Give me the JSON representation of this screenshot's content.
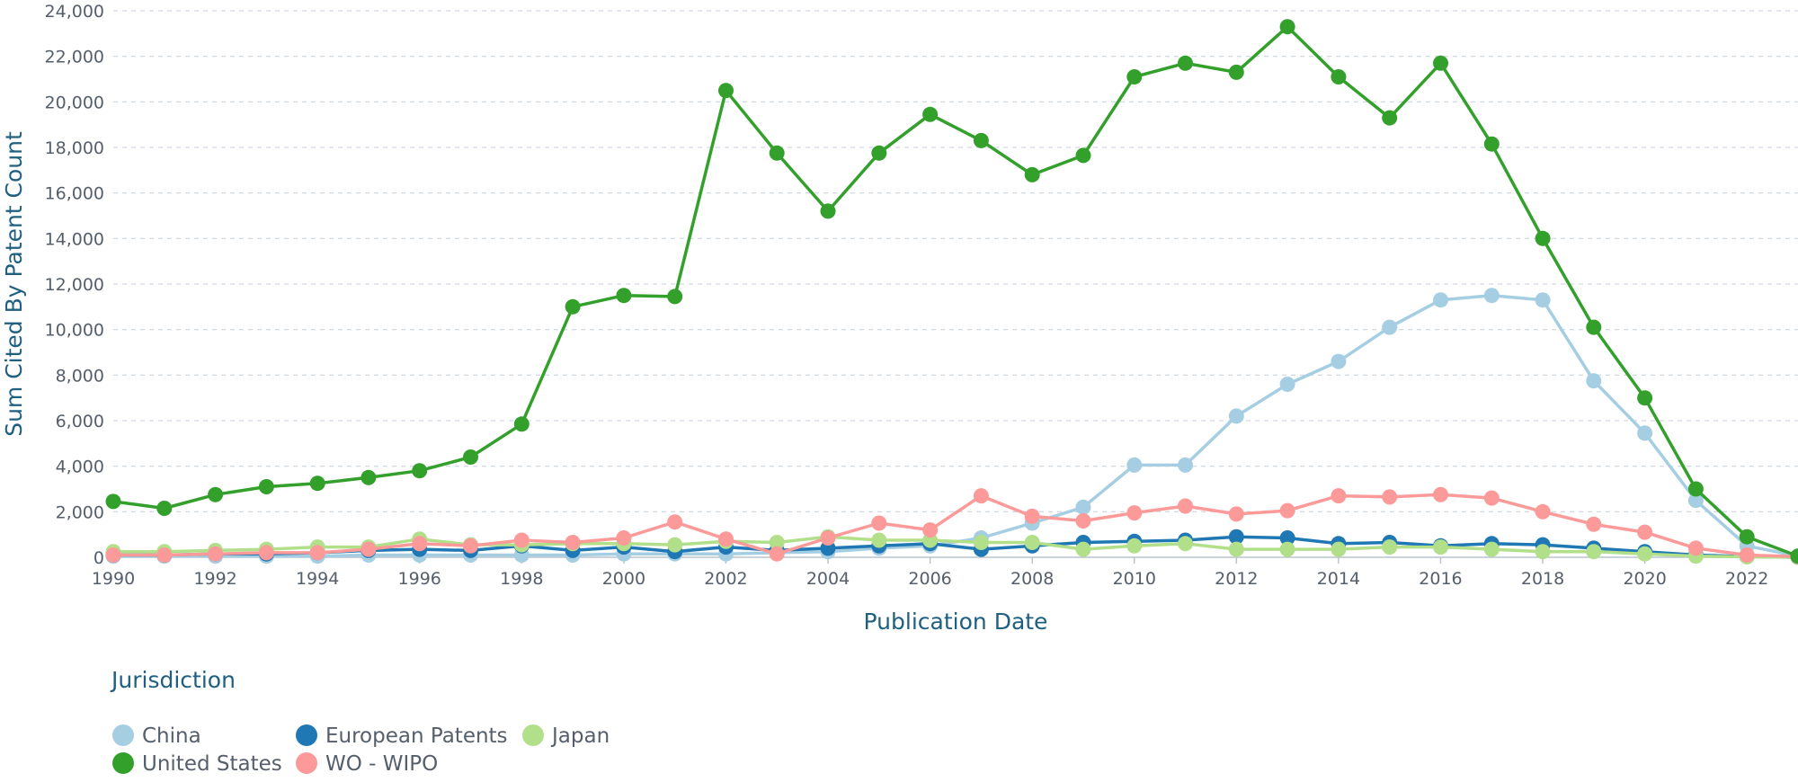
{
  "chart_data": {
    "type": "line",
    "xlabel": "Publication Date",
    "ylabel": "Sum Cited By Patent Count",
    "xlim": [
      1990,
      2023
    ],
    "ylim": [
      0,
      24000
    ],
    "x_ticks": [
      "1990",
      "1992",
      "1994",
      "1996",
      "1998",
      "2000",
      "2002",
      "2004",
      "2006",
      "2008",
      "2010",
      "2012",
      "2014",
      "2016",
      "2018",
      "2020",
      "2022"
    ],
    "y_ticks": [
      "0",
      "2,000",
      "4,000",
      "6,000",
      "8,000",
      "10,000",
      "12,000",
      "14,000",
      "16,000",
      "18,000",
      "20,000",
      "22,000",
      "24,000"
    ],
    "grid": true,
    "legend": {
      "title": "Jurisdiction",
      "position": "bottom-left",
      "entries": [
        "China",
        "European Patents",
        "Japan",
        "United States",
        "WO - WIPO"
      ]
    },
    "x": [
      1990,
      1991,
      1992,
      1993,
      1994,
      1995,
      1996,
      1997,
      1998,
      1999,
      2000,
      2001,
      2002,
      2003,
      2004,
      2005,
      2006,
      2007,
      2008,
      2009,
      2010,
      2011,
      2012,
      2013,
      2014,
      2015,
      2016,
      2017,
      2018,
      2019,
      2020,
      2021,
      2022,
      2023
    ],
    "series": [
      {
        "name": "China",
        "color": "#a6cee3",
        "values": [
          50,
          50,
          50,
          50,
          50,
          100,
          100,
          100,
          100,
          100,
          150,
          150,
          150,
          200,
          250,
          400,
          500,
          850,
          1500,
          2200,
          4050,
          4050,
          6200,
          7600,
          8600,
          10100,
          11300,
          11500,
          11300,
          7750,
          5450,
          2500,
          500,
          50
        ]
      },
      {
        "name": "European Patents",
        "color": "#1f78b4",
        "values": [
          100,
          100,
          150,
          150,
          200,
          300,
          350,
          300,
          500,
          300,
          450,
          250,
          450,
          300,
          400,
          500,
          600,
          350,
          500,
          650,
          700,
          750,
          900,
          850,
          600,
          650,
          500,
          600,
          550,
          400,
          250,
          100,
          30,
          0
        ]
      },
      {
        "name": "Japan",
        "color": "#b2df8a",
        "values": [
          250,
          250,
          300,
          350,
          450,
          450,
          800,
          550,
          550,
          600,
          600,
          550,
          700,
          650,
          900,
          750,
          750,
          650,
          650,
          350,
          500,
          600,
          350,
          350,
          350,
          450,
          450,
          350,
          250,
          250,
          150,
          50,
          20,
          0
        ]
      },
      {
        "name": "United States",
        "color": "#33a02c",
        "values": [
          2450,
          2150,
          2750,
          3100,
          3250,
          3500,
          3800,
          4400,
          5850,
          11000,
          11500,
          11450,
          20500,
          17750,
          15200,
          17750,
          19450,
          18300,
          16800,
          17650,
          21100,
          21700,
          21300,
          23300,
          21100,
          19300,
          21700,
          18150,
          14000,
          10100,
          7000,
          3000,
          900,
          50
        ]
      },
      {
        "name": "WO - WIPO",
        "color": "#fb9a99",
        "values": [
          100,
          100,
          150,
          200,
          200,
          350,
          600,
          500,
          750,
          650,
          850,
          1550,
          800,
          150,
          850,
          1500,
          1200,
          2700,
          1800,
          1600,
          1950,
          2250,
          1900,
          2050,
          2700,
          2650,
          2750,
          2600,
          2000,
          1450,
          1100,
          400,
          100,
          30
        ]
      }
    ]
  }
}
